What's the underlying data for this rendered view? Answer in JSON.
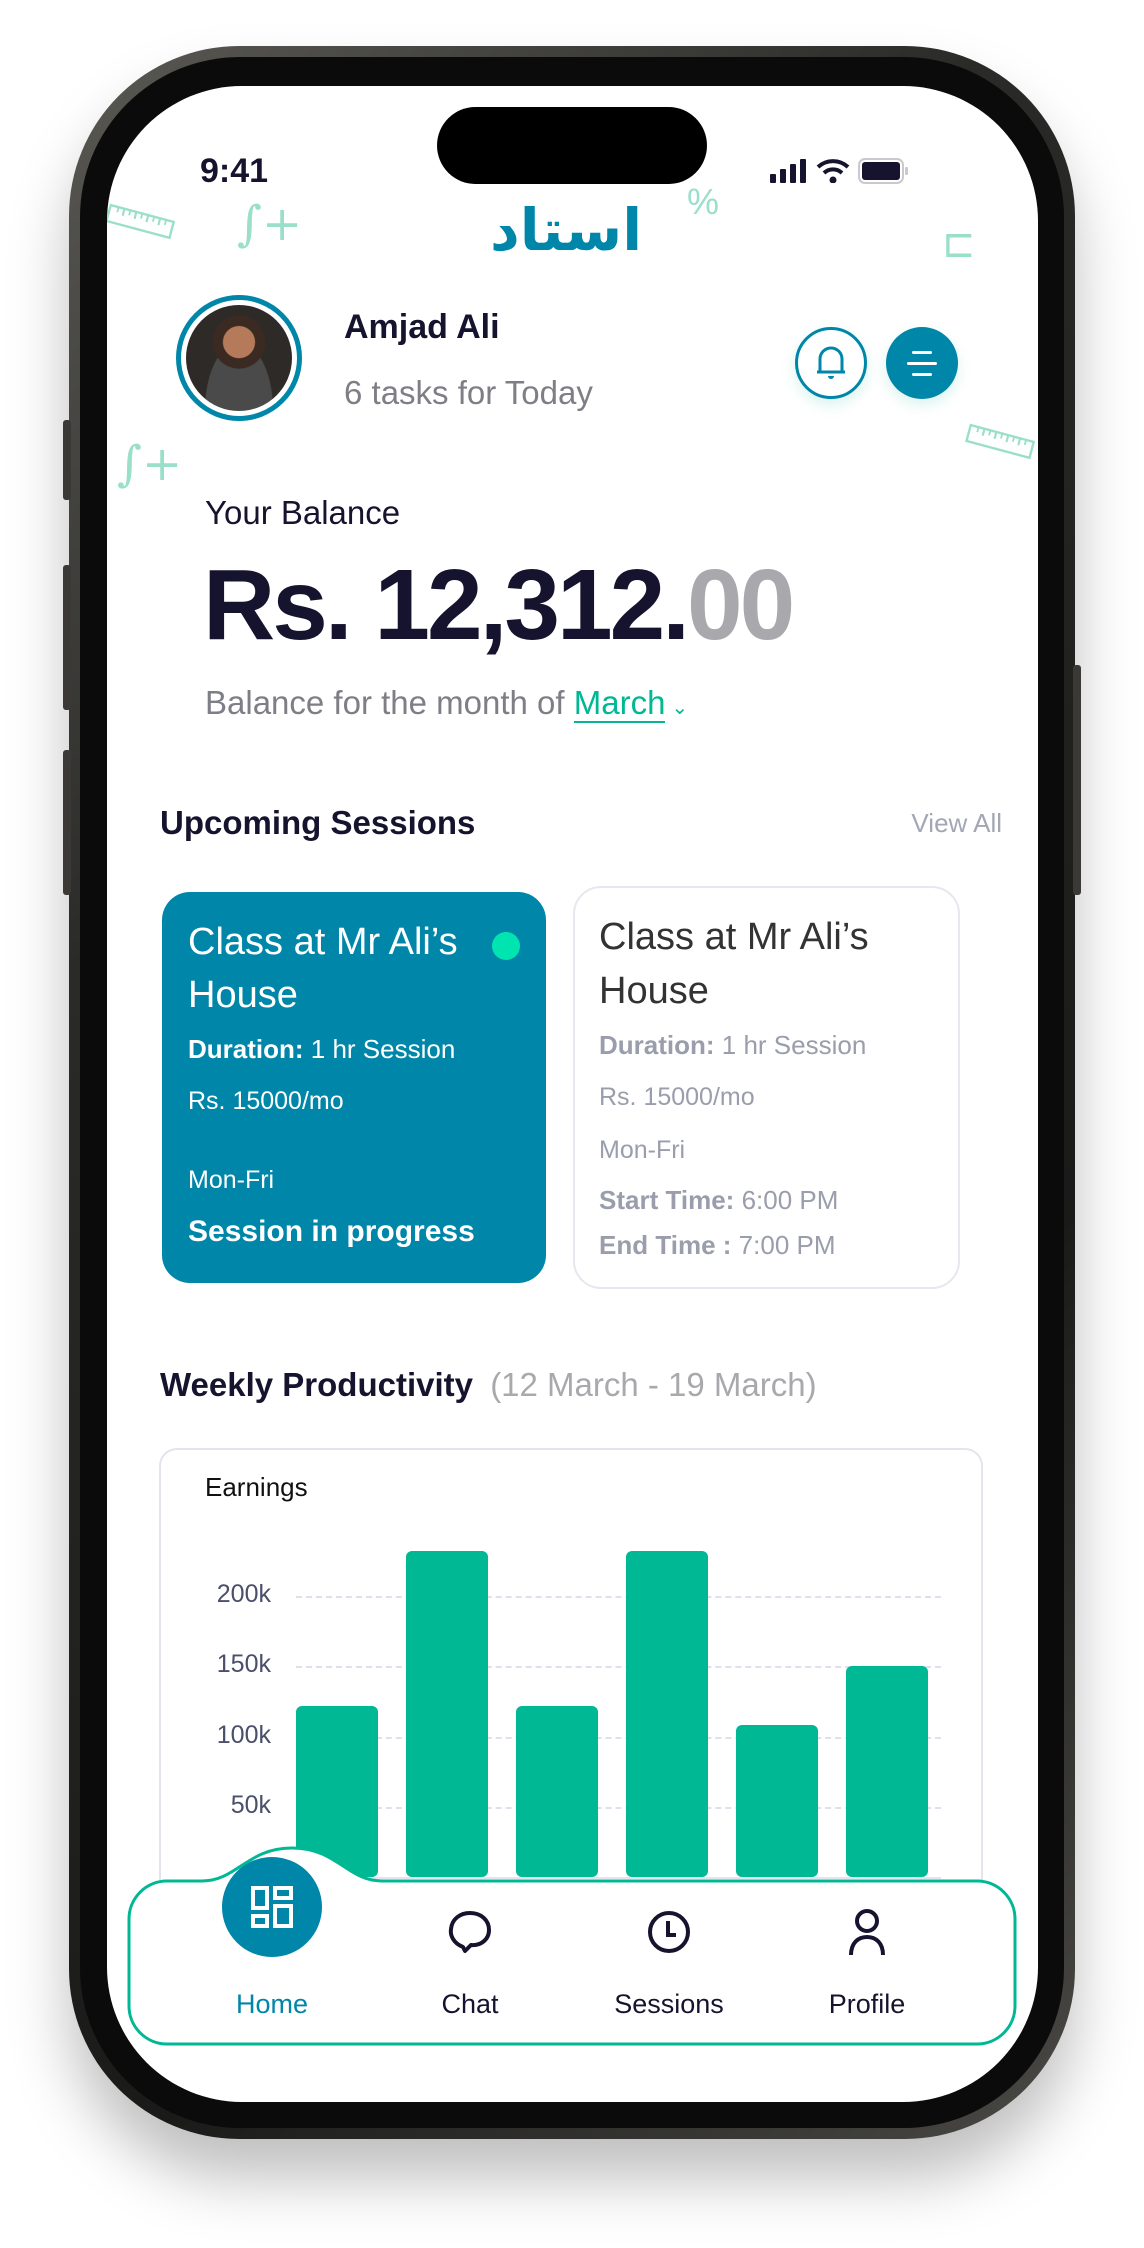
{
  "status_bar": {
    "time": "9:41"
  },
  "app": {
    "logo_text": "استاد",
    "brand_color": "#0086a8",
    "accent_color": "#00b894"
  },
  "header": {
    "name": "Amjad Ali",
    "subtitle": "6 tasks for Today",
    "bell_icon": "bell-icon",
    "menu_icon": "menu-icon"
  },
  "balance": {
    "label": "Your Balance",
    "amount_main": "Rs. 12,312.",
    "amount_decimals": "00",
    "month_prefix": "Balance for the month of",
    "month": "March"
  },
  "sessions": {
    "title": "Upcoming Sessions",
    "view_all": "View All",
    "cards": [
      {
        "title": "Class at Mr Ali’s House",
        "duration_label": "Duration:",
        "duration": "1 hr Session",
        "price": "Rs. 15000/mo",
        "days": "Mon-Fri",
        "status": "Session in progress"
      },
      {
        "title": "Class at Mr Ali’s House",
        "duration_label": "Duration:",
        "duration": "1 hr Session",
        "price": "Rs. 15000/mo",
        "days": "Mon-Fri",
        "start_label": "Start Time:",
        "start": "6:00 PM",
        "end_label": "End Time :",
        "end": "7:00 PM"
      }
    ]
  },
  "productivity": {
    "title": "Weekly Productivity",
    "range": "(12 March - 19 March)"
  },
  "chart_data": {
    "type": "bar",
    "title": "Earnings",
    "ylabel": "",
    "xlabel": "",
    "ylim": [
      0,
      250000
    ],
    "yticks": [
      "0",
      "50k",
      "100k",
      "150k",
      "200k"
    ],
    "ytick_values": [
      0,
      50000,
      100000,
      150000,
      200000
    ],
    "grid": true,
    "values": [
      122000,
      232000,
      122000,
      232000,
      108000,
      150000
    ],
    "color": "#00b894"
  },
  "nav": {
    "items": [
      {
        "label": "Home",
        "active": true
      },
      {
        "label": "Chat"
      },
      {
        "label": "Sessions"
      },
      {
        "label": "Profile"
      }
    ]
  }
}
